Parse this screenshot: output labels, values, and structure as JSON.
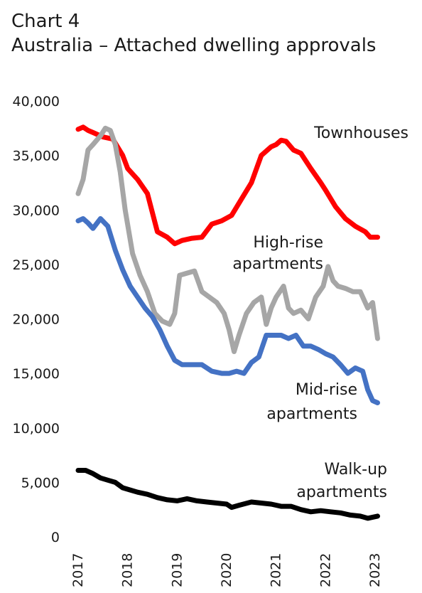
{
  "header": {
    "chart_number": "Chart 4",
    "title": "Australia – Attached dwelling approvals"
  },
  "chart_data": {
    "type": "line",
    "title": "Australia – Attached dwelling approvals",
    "ylim": [
      0,
      40000
    ],
    "xlim": [
      2017.0,
      2023.1
    ],
    "grid": false,
    "legend": "none",
    "y_ticks": [
      "0",
      "5,000",
      "10,000",
      "15,000",
      "20,000",
      "25,000",
      "30,000",
      "35,000",
      "40,000"
    ],
    "x_ticks": [
      "2017",
      "2018",
      "2019",
      "2020",
      "2021",
      "2022",
      "2023"
    ],
    "series": [
      {
        "key": "townhouses",
        "color": "#ff0000",
        "label_lines": [
          "Townhouses"
        ],
        "x": [
          2017.0,
          2017.1,
          2017.2,
          2017.3,
          2017.5,
          2017.7,
          2017.9,
          2018.0,
          2018.2,
          2018.4,
          2018.6,
          2018.8,
          2018.95,
          2019.1,
          2019.3,
          2019.5,
          2019.7,
          2019.9,
          2020.1,
          2020.3,
          2020.5,
          2020.7,
          2020.9,
          2021.0,
          2021.1,
          2021.2,
          2021.35,
          2021.5,
          2021.7,
          2021.9,
          2022.0,
          2022.2,
          2022.4,
          2022.6,
          2022.8,
          2022.9,
          2023.05
        ],
        "y": [
          37400,
          37600,
          37300,
          37100,
          36700,
          36500,
          35000,
          33800,
          32800,
          31500,
          28000,
          27500,
          26900,
          27200,
          27400,
          27500,
          28700,
          29000,
          29500,
          31000,
          32500,
          35000,
          35800,
          36000,
          36400,
          36300,
          35500,
          35200,
          33800,
          32500,
          31800,
          30300,
          29200,
          28500,
          28000,
          27500,
          27500
        ]
      },
      {
        "key": "high_rise",
        "color": "#a6a6a6",
        "label_lines": [
          "High-rise",
          "apartments"
        ],
        "x": [
          2017.0,
          2017.1,
          2017.2,
          2017.3,
          2017.45,
          2017.55,
          2017.65,
          2017.75,
          2017.85,
          2017.95,
          2018.1,
          2018.25,
          2018.4,
          2018.55,
          2018.7,
          2018.85,
          2018.95,
          2019.05,
          2019.2,
          2019.35,
          2019.5,
          2019.65,
          2019.8,
          2019.95,
          2020.05,
          2020.15,
          2020.25,
          2020.4,
          2020.55,
          2020.7,
          2020.8,
          2020.9,
          2021.0,
          2021.15,
          2021.25,
          2021.35,
          2021.5,
          2021.65,
          2021.8,
          2021.95,
          2022.05,
          2022.15,
          2022.25,
          2022.4,
          2022.55,
          2022.7,
          2022.85,
          2022.95,
          2023.05
        ],
        "y": [
          31500,
          32800,
          35500,
          36000,
          36800,
          37500,
          37300,
          36000,
          33500,
          30000,
          26000,
          24000,
          22500,
          20500,
          19800,
          19500,
          20500,
          24000,
          24200,
          24400,
          22500,
          22000,
          21500,
          20500,
          19000,
          17000,
          18500,
          20500,
          21500,
          22000,
          19500,
          21000,
          22000,
          23000,
          21000,
          20500,
          20800,
          20000,
          22000,
          23000,
          24800,
          23500,
          23000,
          22800,
          22500,
          22500,
          21000,
          21500,
          18200
        ]
      },
      {
        "key": "mid_rise",
        "color": "#4472c4",
        "label_lines": [
          "Mid-rise",
          "apartments"
        ],
        "x": [
          2017.0,
          2017.1,
          2017.2,
          2017.3,
          2017.45,
          2017.6,
          2017.75,
          2017.9,
          2018.05,
          2018.2,
          2018.35,
          2018.5,
          2018.65,
          2018.8,
          2018.95,
          2019.1,
          2019.3,
          2019.5,
          2019.7,
          2019.9,
          2020.05,
          2020.2,
          2020.35,
          2020.5,
          2020.65,
          2020.8,
          2020.95,
          2021.1,
          2021.25,
          2021.4,
          2021.55,
          2021.7,
          2021.85,
          2022.0,
          2022.15,
          2022.3,
          2022.45,
          2022.6,
          2022.75,
          2022.85,
          2022.95,
          2023.05
        ],
        "y": [
          29000,
          29200,
          28800,
          28300,
          29200,
          28500,
          26300,
          24500,
          23000,
          22000,
          21000,
          20200,
          19000,
          17500,
          16200,
          15800,
          15800,
          15800,
          15200,
          15000,
          15000,
          15200,
          15000,
          16000,
          16500,
          18500,
          18500,
          18500,
          18200,
          18500,
          17500,
          17500,
          17200,
          16800,
          16500,
          15800,
          15000,
          15500,
          15200,
          13500,
          12500,
          12300
        ]
      },
      {
        "key": "walk_up",
        "color": "#000000",
        "label_lines": [
          "Walk-up",
          "apartments"
        ],
        "x": [
          2017.0,
          2017.15,
          2017.3,
          2017.45,
          2017.6,
          2017.75,
          2017.9,
          2018.05,
          2018.2,
          2018.4,
          2018.6,
          2018.8,
          2019.0,
          2019.2,
          2019.4,
          2019.6,
          2019.8,
          2020.0,
          2020.1,
          2020.25,
          2020.5,
          2020.7,
          2020.9,
          2021.1,
          2021.3,
          2021.5,
          2021.7,
          2021.9,
          2022.1,
          2022.3,
          2022.5,
          2022.7,
          2022.85,
          2022.95,
          2023.05
        ],
        "y": [
          6100,
          6100,
          5800,
          5400,
          5200,
          5000,
          4500,
          4300,
          4100,
          3900,
          3600,
          3400,
          3300,
          3500,
          3300,
          3200,
          3100,
          3000,
          2700,
          2900,
          3200,
          3100,
          3000,
          2800,
          2800,
          2500,
          2300,
          2400,
          2300,
          2200,
          2000,
          1900,
          1700,
          1800,
          1900
        ]
      }
    ]
  }
}
